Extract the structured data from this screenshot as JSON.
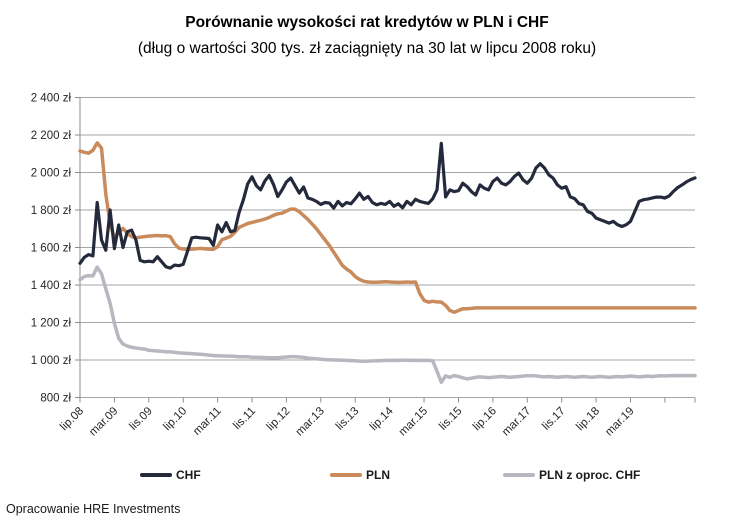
{
  "header": {
    "title": "Porównanie wysokości rat kredytów w PLN i CHF",
    "subtitle": "(dług o wartości 300 tys. zł zaciągnięty na 30 lat w lipcu 2008 roku)"
  },
  "footer": {
    "source_note": "Opracowanie HRE Investments"
  },
  "colors": {
    "chf_line": "#242a3c",
    "pln_line": "#c98b5b",
    "pln_chf_line": "#b7b7bf",
    "gridline": "#a6a6a6",
    "axis": "#8c8c8c",
    "axis_text": "#262626"
  },
  "chart_data": {
    "type": "line",
    "title": "Porównanie wysokości rat kredytów w PLN i CHF",
    "subtitle": "(dług o wartości 300 tys. zł zaciągnięty na 30 lat w lipcu 2008 roku)",
    "xlabel": "",
    "ylabel": "",
    "ylim": [
      800,
      2400
    ],
    "grid": "horizontal",
    "legend_position": "bottom",
    "y_ticks": [
      {
        "value": 2400,
        "label": "2 400 zł"
      },
      {
        "value": 2200,
        "label": "2 200 zł"
      },
      {
        "value": 2000,
        "label": "2 000 zł"
      },
      {
        "value": 1800,
        "label": "1 800 zł"
      },
      {
        "value": 1600,
        "label": "1 600 zł"
      },
      {
        "value": 1400,
        "label": "1 400 zł"
      },
      {
        "value": 1200,
        "label": "1 200 zł"
      },
      {
        "value": 1000,
        "label": "1 000 zł"
      },
      {
        "value": 800,
        "label": "800 zł"
      }
    ],
    "x_tick_every": 8,
    "x_tick_labels": [
      "lip.08",
      "mar.09",
      "lis.09",
      "lip.10",
      "mar.11",
      "lis.11",
      "lip.12",
      "mar.13",
      "lis.13",
      "lip.14",
      "mar.15",
      "lis.15",
      "lip.16",
      "mar.17",
      "lis.17",
      "lip.18",
      "mar.19"
    ],
    "x_unit": "monthly from lip.08",
    "series": [
      {
        "name": "PLN z oproc. CHF",
        "color": "#b7b7bf",
        "width": 3.5,
        "values": [
          1428,
          1445,
          1450,
          1448,
          1495,
          1460,
          1380,
          1302,
          1195,
          1115,
          1085,
          1074,
          1068,
          1064,
          1061,
          1058,
          1052,
          1050,
          1048,
          1046,
          1044,
          1043,
          1041,
          1038,
          1037,
          1035,
          1034,
          1032,
          1031,
          1029,
          1026,
          1024,
          1022,
          1022,
          1021,
          1021,
          1019,
          1017,
          1017,
          1017,
          1015,
          1014,
          1014,
          1013,
          1012,
          1012,
          1012,
          1014,
          1016,
          1018,
          1018,
          1016,
          1014,
          1010,
          1008,
          1006,
          1004,
          1002,
          1001,
          1000,
          1000,
          999,
          998,
          997,
          996,
          994,
          993,
          994,
          995,
          996,
          997,
          998,
          998,
          998,
          998,
          999,
          999,
          998,
          998,
          998,
          998,
          998,
          996,
          940,
          881,
          915,
          908,
          917,
          912,
          905,
          899,
          903,
          908,
          910,
          908,
          906,
          908,
          910,
          912,
          910,
          908,
          910,
          912,
          914,
          916,
          917,
          915,
          912,
          910,
          912,
          910,
          908,
          910,
          912,
          910,
          908,
          910,
          912,
          910,
          908,
          910,
          912,
          910,
          908,
          910,
          912,
          910,
          912,
          914,
          912,
          910,
          912,
          914,
          912,
          914,
          916,
          915,
          916,
          917,
          917,
          917,
          917,
          917,
          917
        ]
      },
      {
        "name": "PLN",
        "color": "#c98b5b",
        "width": 3.5,
        "values": [
          2115,
          2108,
          2103,
          2118,
          2158,
          2130,
          1885,
          1730,
          1650,
          1680,
          1702,
          1677,
          1658,
          1652,
          1655,
          1658,
          1661,
          1663,
          1664,
          1662,
          1663,
          1658,
          1620,
          1597,
          1592,
          1590,
          1591,
          1593,
          1595,
          1593,
          1591,
          1590,
          1605,
          1641,
          1650,
          1659,
          1680,
          1707,
          1718,
          1728,
          1734,
          1740,
          1745,
          1752,
          1760,
          1772,
          1780,
          1783,
          1794,
          1805,
          1805,
          1791,
          1770,
          1750,
          1725,
          1700,
          1670,
          1640,
          1610,
          1575,
          1540,
          1505,
          1485,
          1470,
          1445,
          1430,
          1420,
          1416,
          1415,
          1415,
          1416,
          1417,
          1416,
          1415,
          1414,
          1415,
          1416,
          1415,
          1416,
          1354,
          1318,
          1309,
          1313,
          1310,
          1309,
          1291,
          1264,
          1255,
          1264,
          1273,
          1273,
          1275,
          1278,
          1278,
          1278,
          1278,
          1278,
          1278,
          1278,
          1278,
          1278,
          1278,
          1278,
          1278,
          1278,
          1278,
          1278,
          1278,
          1278,
          1278,
          1278,
          1278,
          1278,
          1278,
          1278,
          1278,
          1278,
          1278,
          1278,
          1278,
          1278,
          1278,
          1278,
          1278,
          1278,
          1278,
          1278,
          1278,
          1278,
          1278,
          1278,
          1278,
          1278,
          1278,
          1278,
          1278,
          1278,
          1278,
          1278,
          1278,
          1278,
          1278,
          1278,
          1278
        ]
      },
      {
        "name": "CHF",
        "color": "#242a3c",
        "width": 3.2,
        "values": [
          1516,
          1548,
          1562,
          1555,
          1840,
          1640,
          1585,
          1800,
          1594,
          1720,
          1600,
          1684,
          1693,
          1640,
          1531,
          1524,
          1527,
          1524,
          1551,
          1524,
          1497,
          1490,
          1506,
          1503,
          1510,
          1580,
          1652,
          1655,
          1652,
          1650,
          1648,
          1612,
          1720,
          1684,
          1733,
          1684,
          1690,
          1787,
          1855,
          1940,
          1977,
          1930,
          1907,
          1955,
          1984,
          1936,
          1872,
          1907,
          1950,
          1970,
          1930,
          1890,
          1923,
          1864,
          1857,
          1846,
          1830,
          1840,
          1837,
          1810,
          1846,
          1822,
          1840,
          1833,
          1860,
          1890,
          1857,
          1872,
          1840,
          1828,
          1835,
          1830,
          1846,
          1820,
          1833,
          1812,
          1846,
          1828,
          1857,
          1846,
          1840,
          1835,
          1860,
          1907,
          2155,
          1870,
          1907,
          1898,
          1903,
          1943,
          1925,
          1898,
          1880,
          1934,
          1916,
          1907,
          1952,
          1970,
          1943,
          1934,
          1952,
          1979,
          1997,
          1961,
          1943,
          1970,
          2024,
          2047,
          2024,
          1988,
          1970,
          1934,
          1916,
          1925,
          1870,
          1861,
          1834,
          1828,
          1792,
          1783,
          1757,
          1748,
          1739,
          1730,
          1739,
          1721,
          1712,
          1721,
          1739,
          1792,
          1846,
          1855,
          1858,
          1864,
          1869,
          1869,
          1864,
          1875,
          1900,
          1920,
          1934,
          1950,
          1962,
          1971
        ]
      }
    ]
  }
}
